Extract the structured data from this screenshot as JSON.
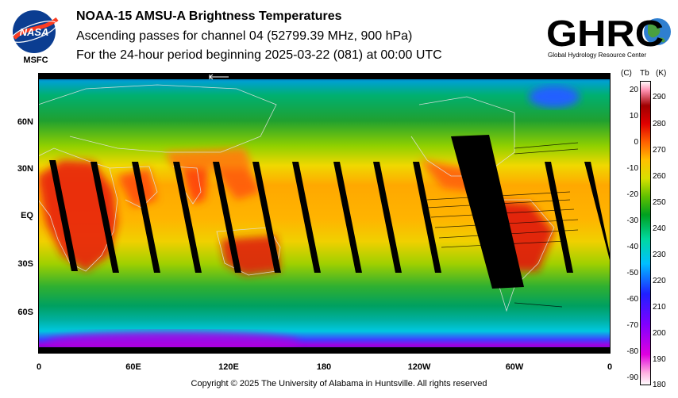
{
  "header": {
    "title": "NOAA-15 AMSU-A Brightness Temperatures",
    "subtitle": "Ascending passes for channel 04 (52799.39 MHz, 900 hPa)",
    "period": "For the 24-hour period beginning 2025-03-22 (081) at 00:00 UTC"
  },
  "logos": {
    "nasa_text": "NASA",
    "msfc_text": "MSFC",
    "ghrc_text": "GHRC",
    "ghrc_subtext": "Global Hydrology Resource Center"
  },
  "map": {
    "lat_labels": [
      "60N",
      "30N",
      "EQ",
      "30S",
      "60S"
    ],
    "lon_labels": [
      "0",
      "60E",
      "120E",
      "180",
      "120W",
      "60W",
      "0"
    ],
    "lon_range": [
      0,
      360
    ],
    "lat_range": [
      -90,
      90
    ]
  },
  "colorbar": {
    "header_c": "(C)",
    "header_tb": "Tb",
    "header_k": "(K)",
    "celsius_ticks": [
      "20",
      "10",
      "0",
      "-10",
      "-20",
      "-30",
      "-40",
      "-50",
      "-60",
      "-70",
      "-80",
      "-90"
    ],
    "kelvin_ticks": [
      "290",
      "280",
      "270",
      "260",
      "250",
      "240",
      "230",
      "220",
      "210",
      "200",
      "190",
      "180"
    ],
    "range_k": [
      180,
      295
    ],
    "colors": [
      "#e000e0",
      "#8000ff",
      "#2020ff",
      "#00c0ff",
      "#00d8a0",
      "#00a020",
      "#60c000",
      "#d8e000",
      "#ffc000",
      "#ff6000",
      "#e00000",
      "#a00000",
      "#ffb0c0",
      "#ffffff"
    ]
  },
  "footer": {
    "copyright": "Copyright © 2025 The University of Alabama in Huntsville.  All rights reserved"
  }
}
